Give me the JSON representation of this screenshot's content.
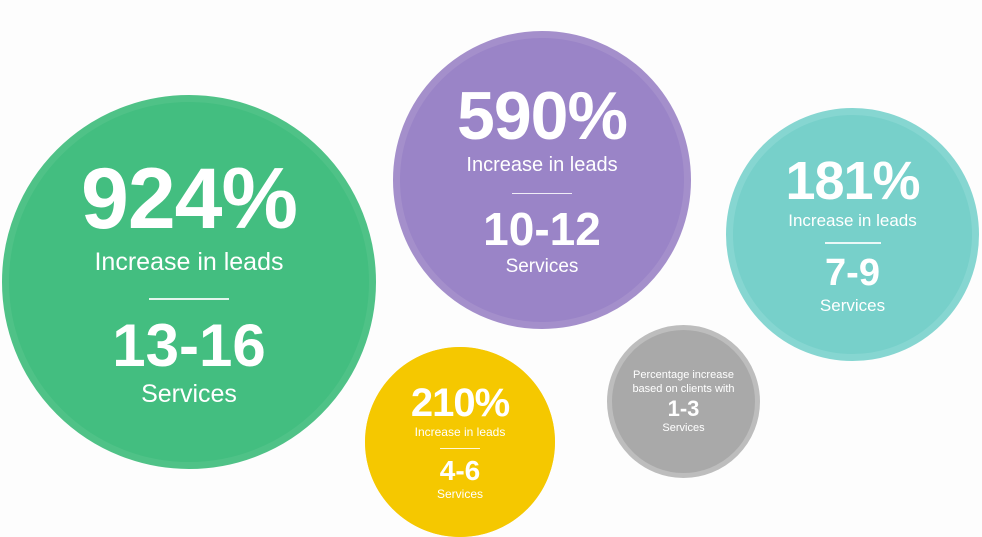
{
  "chart_data": {
    "type": "bubble",
    "title": "",
    "value_label": "Increase in leads",
    "legend": {
      "text": "Percentage increase based on clients with",
      "range": "1-3",
      "unit": "Services"
    },
    "series": [
      {
        "percent_text": "924%",
        "value": 924,
        "label": "Increase in leads",
        "range_text": "13-16",
        "unit": "Services",
        "color": "#43be80"
      },
      {
        "percent_text": "590%",
        "value": 590,
        "label": "Increase in leads",
        "range_text": "10-12",
        "unit": "Services",
        "color": "#9a84c7"
      },
      {
        "percent_text": "181%",
        "value": 181,
        "label": "Increase in leads",
        "range_text": "7-9",
        "unit": "Services",
        "color": "#77d0ca"
      },
      {
        "percent_text": "210%",
        "value": 210,
        "label": "Increase in leads",
        "range_text": "4-6",
        "unit": "Services",
        "color": "#f5c800"
      }
    ],
    "legend_color": "#a9a9a9"
  }
}
